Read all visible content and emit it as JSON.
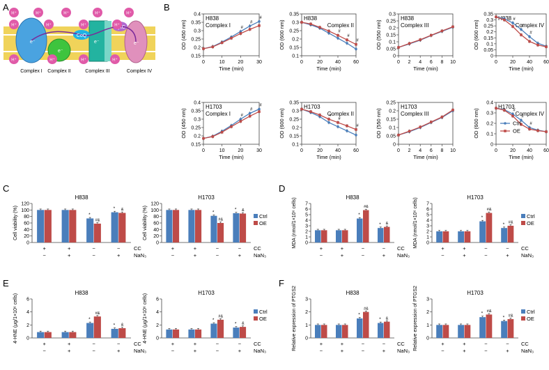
{
  "colors": {
    "ctrl": "#4a7ebb",
    "oe": "#be4b48",
    "axis": "#555555",
    "proton": "#e05aa8",
    "c1": "#4aa3e0",
    "c2": "#3ec43e",
    "c3": "#23b3a0",
    "c4": "#e090bc",
    "q": "#1fb2e6",
    "cytc": "#b06ad0",
    "membrane": "#f0d35a"
  },
  "panel_labels": [
    "A",
    "B",
    "C",
    "D",
    "E",
    "F"
  ],
  "panel_a": {
    "proton": "H⁺",
    "electron": "e⁻",
    "coq": "CoQ",
    "cytc": "CytC",
    "labels": [
      "Complex I",
      "Complex II",
      "Complex III",
      "Complex IV"
    ]
  },
  "legend": {
    "ctrl": "Ctrl",
    "oe": "OE"
  },
  "treat": {
    "cc": "CC",
    "nan3": "NaN₃",
    "plus": "+",
    "minus": "−"
  },
  "chart_data": [
    {
      "id": "B1",
      "type": "line",
      "cell": "H838",
      "complex": "Complex I",
      "ylabel": "OD (450 nm)",
      "xlabel": "Time (min)",
      "x": [
        0,
        5,
        10,
        15,
        20,
        25,
        30
      ],
      "xticks": [
        0,
        10,
        20,
        30
      ],
      "xlim": [
        0,
        30
      ],
      "ylim": [
        0.15,
        0.4
      ],
      "yticks": [
        0.15,
        0.2,
        0.25,
        0.3,
        0.35,
        0.4
      ],
      "series": [
        {
          "name": "Ctrl",
          "values": [
            0.192,
            0.205,
            0.232,
            0.262,
            0.295,
            0.328,
            0.355
          ]
        },
        {
          "name": "OE",
          "values": [
            0.192,
            0.203,
            0.228,
            0.255,
            0.283,
            0.308,
            0.33
          ]
        }
      ],
      "annotations": [
        {
          "x": 20,
          "text": "#"
        },
        {
          "x": 25,
          "text": "#"
        },
        {
          "x": 30,
          "text": "#"
        }
      ]
    },
    {
      "id": "B2",
      "type": "line",
      "cell": "H838",
      "complex": "Complex II",
      "ylabel": "OD (600 nm)",
      "xlabel": "Time (min)",
      "x": [
        0,
        10,
        20,
        30,
        40,
        50,
        60
      ],
      "xticks": [
        0,
        20,
        40,
        60
      ],
      "xlim": [
        0,
        60
      ],
      "ylim": [
        0.1,
        0.35
      ],
      "yticks": [
        0.1,
        0.15,
        0.2,
        0.25,
        0.3,
        0.35
      ],
      "series": [
        {
          "name": "Ctrl",
          "values": [
            0.3,
            0.285,
            0.265,
            0.235,
            0.205,
            0.175,
            0.14
          ]
        },
        {
          "name": "OE",
          "values": [
            0.3,
            0.29,
            0.27,
            0.248,
            0.222,
            0.195,
            0.168
          ]
        }
      ],
      "annotations": [
        {
          "x": 40,
          "text": "#"
        },
        {
          "x": 50,
          "text": "#"
        },
        {
          "x": 60,
          "text": "#"
        }
      ]
    },
    {
      "id": "B3",
      "type": "line",
      "cell": "H838",
      "complex": "Complex III",
      "ylabel": "OD (550 nm)",
      "xlabel": "Time (min)",
      "x": [
        0,
        2,
        4,
        6,
        8,
        10
      ],
      "xticks": [
        0,
        2,
        4,
        6,
        8,
        10
      ],
      "xlim": [
        0,
        10
      ],
      "ylim": [
        0,
        0.3
      ],
      "yticks": [
        0,
        0.05,
        0.1,
        0.15,
        0.2,
        0.25,
        0.3
      ],
      "series": [
        {
          "name": "Ctrl",
          "values": [
            0.06,
            0.085,
            0.112,
            0.145,
            0.175,
            0.205
          ]
        },
        {
          "name": "OE",
          "values": [
            0.06,
            0.088,
            0.115,
            0.147,
            0.178,
            0.208
          ]
        }
      ],
      "annotations": []
    },
    {
      "id": "B4",
      "type": "line",
      "cell": "H838",
      "complex": "Complex IV",
      "ylabel": "OD (600 nm)",
      "xlabel": "Time (min)",
      "x": [
        0,
        10,
        20,
        30,
        40,
        50,
        60
      ],
      "xticks": [
        0,
        20,
        40,
        60
      ],
      "xlim": [
        0,
        60
      ],
      "ylim": [
        0,
        0.35
      ],
      "yticks": [
        0,
        0.05,
        0.1,
        0.15,
        0.2,
        0.25,
        0.3,
        0.35
      ],
      "series": [
        {
          "name": "Ctrl",
          "values": [
            0.325,
            0.31,
            0.275,
            0.22,
            0.16,
            0.105,
            0.08
          ]
        },
        {
          "name": "OE",
          "values": [
            0.325,
            0.3,
            0.245,
            0.175,
            0.12,
            0.09,
            0.075
          ]
        }
      ],
      "annotations": [
        {
          "x": 20,
          "text": "#"
        },
        {
          "x": 30,
          "text": "#"
        },
        {
          "x": 40,
          "text": "#"
        }
      ]
    },
    {
      "id": "B5",
      "type": "line",
      "cell": "H1703",
      "complex": "Complex I",
      "ylabel": "OD (450 nm)",
      "xlabel": "Time (min)",
      "x": [
        0,
        5,
        10,
        15,
        20,
        25,
        30
      ],
      "xticks": [
        0,
        10,
        20,
        30
      ],
      "xlim": [
        0,
        30
      ],
      "ylim": [
        0.15,
        0.4
      ],
      "yticks": [
        0.15,
        0.2,
        0.25,
        0.3,
        0.35,
        0.4
      ],
      "series": [
        {
          "name": "Ctrl",
          "values": [
            0.185,
            0.198,
            0.228,
            0.262,
            0.3,
            0.335,
            0.36
          ]
        },
        {
          "name": "OE",
          "values": [
            0.185,
            0.196,
            0.222,
            0.255,
            0.287,
            0.318,
            0.345
          ]
        }
      ],
      "annotations": [
        {
          "x": 20,
          "text": "#"
        },
        {
          "x": 25,
          "text": "#"
        },
        {
          "x": 30,
          "text": "#"
        }
      ]
    },
    {
      "id": "B6",
      "type": "line",
      "cell": "H1703",
      "complex": "Complex II",
      "ylabel": "OD (600 nm)",
      "xlabel": "Time (min)",
      "x": [
        0,
        10,
        20,
        30,
        40,
        50,
        60
      ],
      "xticks": [
        0,
        20,
        40,
        60
      ],
      "xlim": [
        0,
        60
      ],
      "ylim": [
        0.1,
        0.35
      ],
      "yticks": [
        0.1,
        0.15,
        0.2,
        0.25,
        0.3,
        0.35
      ],
      "series": [
        {
          "name": "Ctrl",
          "values": [
            0.31,
            0.29,
            0.265,
            0.23,
            0.205,
            0.18,
            0.155
          ]
        },
        {
          "name": "OE",
          "values": [
            0.31,
            0.295,
            0.275,
            0.25,
            0.23,
            0.21,
            0.188
          ]
        }
      ],
      "annotations": [
        {
          "x": 30,
          "text": "#"
        },
        {
          "x": 40,
          "text": "#"
        },
        {
          "x": 60,
          "text": "#"
        }
      ]
    },
    {
      "id": "B7",
      "type": "line",
      "cell": "H1703",
      "complex": "Complex III",
      "ylabel": "OD (550 nm)",
      "xlabel": "Time (min)",
      "x": [
        0,
        2,
        4,
        6,
        8,
        10
      ],
      "xticks": [
        0,
        2,
        4,
        6,
        8,
        10
      ],
      "xlim": [
        0,
        10
      ],
      "ylim": [
        0,
        0.25
      ],
      "yticks": [
        0,
        0.05,
        0.1,
        0.15,
        0.2,
        0.25
      ],
      "series": [
        {
          "name": "Ctrl",
          "values": [
            0.055,
            0.075,
            0.1,
            0.13,
            0.16,
            0.2
          ]
        },
        {
          "name": "OE",
          "values": [
            0.055,
            0.078,
            0.103,
            0.133,
            0.163,
            0.205
          ]
        }
      ],
      "annotations": []
    },
    {
      "id": "B8",
      "type": "line",
      "cell": "H1703",
      "complex": "Complex IV",
      "ylabel": "OD (600 nm)",
      "xlabel": "Time (min)",
      "x": [
        0,
        10,
        20,
        30,
        40,
        50,
        60
      ],
      "xticks": [
        0,
        20,
        40,
        60
      ],
      "xlim": [
        0,
        60
      ],
      "ylim": [
        0,
        0.4
      ],
      "yticks": [
        0,
        0.1,
        0.2,
        0.3,
        0.4
      ],
      "series": [
        {
          "name": "Ctrl",
          "values": [
            0.345,
            0.33,
            0.29,
            0.23,
            0.16,
            0.135,
            0.12
          ]
        },
        {
          "name": "OE",
          "values": [
            0.345,
            0.325,
            0.27,
            0.19,
            0.145,
            0.13,
            0.12
          ]
        }
      ],
      "annotations": [
        {
          "x": 20,
          "text": "#"
        },
        {
          "x": 30,
          "text": "#"
        },
        {
          "x": 40,
          "text": "#"
        }
      ],
      "legend": "bottom-left"
    },
    {
      "id": "C1",
      "type": "bar",
      "title": "H838",
      "ylabel": "Cell viability (%)",
      "ylim": [
        0,
        120
      ],
      "yticks": [
        0,
        20,
        40,
        60,
        80,
        100,
        120
      ],
      "cc": [
        "+",
        "+",
        "−",
        "−"
      ],
      "nan3": [
        "−",
        "+",
        "−",
        "+"
      ],
      "series": [
        {
          "name": "Ctrl",
          "values": [
            100,
            100,
            74,
            93
          ]
        },
        {
          "name": "OE",
          "values": [
            100,
            100,
            58,
            91
          ]
        }
      ],
      "annotations": [
        {
          "group": 2,
          "ctrl": "*",
          "oe": "#&"
        },
        {
          "group": 3,
          "ctrl": "*",
          "oe": "&"
        }
      ]
    },
    {
      "id": "C2",
      "type": "bar",
      "title": "H1703",
      "ylabel": "Cell viability (%)",
      "ylim": [
        0,
        120
      ],
      "yticks": [
        0,
        20,
        40,
        60,
        80,
        100,
        120
      ],
      "cc": [
        "+",
        "+",
        "−",
        "−"
      ],
      "nan3": [
        "−",
        "+",
        "−",
        "+"
      ],
      "series": [
        {
          "name": "Ctrl",
          "values": [
            100,
            100,
            82,
            90
          ]
        },
        {
          "name": "OE",
          "values": [
            100,
            100,
            60,
            89
          ]
        }
      ],
      "annotations": [
        {
          "group": 2,
          "ctrl": "*",
          "oe": "#&"
        },
        {
          "group": 3,
          "ctrl": "*",
          "oe": "&"
        }
      ]
    },
    {
      "id": "D1",
      "type": "bar",
      "title": "H838",
      "ylabel": "MDA (nmol/1×10⁶ cells)",
      "ylim": [
        0,
        7
      ],
      "yticks": [
        0,
        1,
        2,
        3,
        4,
        5,
        6,
        7
      ],
      "cc": [
        "+",
        "+",
        "−",
        "−"
      ],
      "nan3": [
        "−",
        "+",
        "−",
        "+"
      ],
      "series": [
        {
          "name": "Ctrl",
          "values": [
            2.2,
            2.2,
            4.3,
            2.6
          ]
        },
        {
          "name": "OE",
          "values": [
            2.2,
            2.2,
            5.8,
            2.8
          ]
        }
      ],
      "annotations": [
        {
          "group": 2,
          "ctrl": "*",
          "oe": "#&"
        },
        {
          "group": 3,
          "ctrl": "*",
          "oe": "&"
        }
      ]
    },
    {
      "id": "D2",
      "type": "bar",
      "title": "H1703",
      "ylabel": "MDA (nmol/1×10⁶ cells)",
      "ylim": [
        0,
        7
      ],
      "yticks": [
        0,
        1,
        2,
        3,
        4,
        5,
        6,
        7
      ],
      "cc": [
        "+",
        "+",
        "−",
        "−"
      ],
      "nan3": [
        "−",
        "+",
        "−",
        "+"
      ],
      "series": [
        {
          "name": "Ctrl",
          "values": [
            2.0,
            2.0,
            3.8,
            2.6
          ]
        },
        {
          "name": "OE",
          "values": [
            2.0,
            2.0,
            5.3,
            3.0
          ]
        }
      ],
      "annotations": [
        {
          "group": 2,
          "ctrl": "*",
          "oe": "#&"
        },
        {
          "group": 3,
          "ctrl": "*",
          "oe": "#&"
        }
      ]
    },
    {
      "id": "E1",
      "type": "bar",
      "title": "H838",
      "ylabel": "4-HNE (μg/1×10⁶ cells)",
      "ylim": [
        0,
        6
      ],
      "yticks": [
        0,
        2,
        4,
        6
      ],
      "cc": [
        "+",
        "+",
        "−",
        "−"
      ],
      "nan3": [
        "−",
        "+",
        "−",
        "+"
      ],
      "series": [
        {
          "name": "Ctrl",
          "values": [
            0.9,
            0.9,
            2.3,
            1.4
          ]
        },
        {
          "name": "OE",
          "values": [
            0.9,
            0.9,
            3.3,
            1.5
          ]
        }
      ],
      "annotations": [
        {
          "group": 2,
          "ctrl": "*",
          "oe": "#&"
        },
        {
          "group": 3,
          "ctrl": "*",
          "oe": "&"
        }
      ]
    },
    {
      "id": "E2",
      "type": "bar",
      "title": "H1703",
      "ylabel": "4-HNE (μg/1×10⁶ cells)",
      "ylim": [
        0,
        6
      ],
      "yticks": [
        0,
        2,
        4,
        6
      ],
      "cc": [
        "+",
        "+",
        "−",
        "−"
      ],
      "nan3": [
        "−",
        "+",
        "−",
        "+"
      ],
      "series": [
        {
          "name": "Ctrl",
          "values": [
            1.3,
            1.3,
            2.2,
            1.6
          ]
        },
        {
          "name": "OE",
          "values": [
            1.3,
            1.3,
            2.8,
            1.7
          ]
        }
      ],
      "annotations": [
        {
          "group": 2,
          "ctrl": "*",
          "oe": "#&"
        },
        {
          "group": 3,
          "ctrl": "*",
          "oe": "&"
        }
      ]
    },
    {
      "id": "F1",
      "type": "bar",
      "title": "H838",
      "ylabel": "Relative expression of PTGS2",
      "ylim": [
        0,
        3
      ],
      "yticks": [
        0,
        1,
        2,
        3
      ],
      "cc": [
        "+",
        "+",
        "−",
        "−"
      ],
      "nan3": [
        "−",
        "+",
        "−",
        "+"
      ],
      "series": [
        {
          "name": "Ctrl",
          "values": [
            1.0,
            1.0,
            1.5,
            1.15
          ]
        },
        {
          "name": "OE",
          "values": [
            1.0,
            1.0,
            2.0,
            1.25
          ]
        }
      ],
      "annotations": [
        {
          "group": 2,
          "ctrl": "*",
          "oe": "#&"
        },
        {
          "group": 3,
          "ctrl": "*",
          "oe": "&"
        }
      ]
    },
    {
      "id": "F2",
      "type": "bar",
      "title": "H1703",
      "ylabel": "Relative expression of PTGS2",
      "ylim": [
        0,
        3
      ],
      "yticks": [
        0,
        1,
        2,
        3
      ],
      "cc": [
        "+",
        "+",
        "−",
        "−"
      ],
      "nan3": [
        "−",
        "+",
        "−",
        "+"
      ],
      "series": [
        {
          "name": "Ctrl",
          "values": [
            1.0,
            1.0,
            1.6,
            1.3
          ]
        },
        {
          "name": "OE",
          "values": [
            1.0,
            1.0,
            1.8,
            1.45
          ]
        }
      ],
      "annotations": [
        {
          "group": 2,
          "ctrl": "*",
          "oe": "#&"
        },
        {
          "group": 3,
          "ctrl": "*",
          "oe": "#&"
        }
      ]
    }
  ]
}
